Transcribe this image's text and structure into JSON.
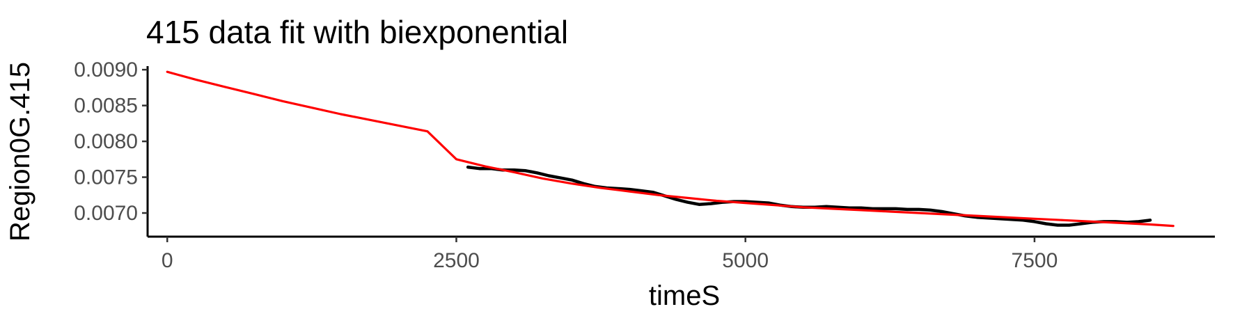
{
  "chart_data": {
    "type": "line",
    "title": "415 data fit with biexponential",
    "xlabel": "timeS",
    "ylabel": "Region0G.415",
    "xlim": [
      -170,
      9060
    ],
    "ylim": [
      0.00667,
      0.00905
    ],
    "x_ticks": [
      0,
      2500,
      5000,
      7500
    ],
    "x_tick_labels": [
      "0",
      "2500",
      "5000",
      "7500"
    ],
    "y_ticks": [
      0.007,
      0.0075,
      0.008,
      0.0085,
      0.009
    ],
    "y_tick_labels": [
      "0.0070",
      "0.0075",
      "0.0080",
      "0.0085",
      "0.0090"
    ],
    "grid": false,
    "legend": "none",
    "series": [
      {
        "role": "observed data",
        "style": "line",
        "color": "#000000",
        "x": [
          2600,
          2700,
          2800,
          2900,
          3000,
          3100,
          3200,
          3300,
          3400,
          3500,
          3600,
          3700,
          3800,
          3900,
          4000,
          4100,
          4200,
          4300,
          4400,
          4500,
          4600,
          4700,
          4800,
          4900,
          5000,
          5100,
          5200,
          5300,
          5400,
          5500,
          5600,
          5700,
          5800,
          5900,
          6000,
          6100,
          6200,
          6300,
          6400,
          6500,
          6600,
          6700,
          6800,
          6900,
          7000,
          7100,
          7200,
          7300,
          7400,
          7500,
          7600,
          7700,
          7800,
          7900,
          8000,
          8100,
          8200,
          8300,
          8400,
          8500
        ],
        "y": [
          0.00764,
          0.00762,
          0.00762,
          0.0076,
          0.0076,
          0.00759,
          0.00756,
          0.00752,
          0.00749,
          0.00746,
          0.00741,
          0.00737,
          0.00735,
          0.00734,
          0.00733,
          0.00731,
          0.00729,
          0.00724,
          0.00719,
          0.00715,
          0.00712,
          0.00713,
          0.00715,
          0.00716,
          0.00716,
          0.00715,
          0.00714,
          0.00711,
          0.00709,
          0.00708,
          0.00708,
          0.00709,
          0.00708,
          0.00707,
          0.00707,
          0.00706,
          0.00706,
          0.00706,
          0.00705,
          0.00705,
          0.00704,
          0.00702,
          0.00699,
          0.00696,
          0.00694,
          0.00693,
          0.00692,
          0.00691,
          0.0069,
          0.00688,
          0.00685,
          0.00683,
          0.00683,
          0.00685,
          0.00687,
          0.00688,
          0.00688,
          0.00687,
          0.00688,
          0.0069
        ]
      },
      {
        "role": "biexponential fit",
        "style": "line",
        "color": "#ff0000",
        "x": [
          0,
          250,
          500,
          750,
          1000,
          1250,
          1500,
          1750,
          2000,
          2250,
          2500,
          2750,
          3000,
          3250,
          3500,
          3750,
          4000,
          4250,
          4500,
          4750,
          5000,
          5250,
          5500,
          5750,
          6000,
          6250,
          6500,
          6750,
          7000,
          7250,
          7500,
          7750,
          8000,
          8250,
          8500,
          8700
        ],
        "y": [
          0.00897,
          0.00886,
          0.00876,
          0.00866,
          0.00856,
          0.00847,
          0.00838,
          0.0083,
          0.00822,
          0.00814,
          0.00775,
          0.00765,
          0.00757,
          0.00748,
          0.00741,
          0.00735,
          0.0073,
          0.00725,
          0.00721,
          0.00717,
          0.00714,
          0.00711,
          0.00708,
          0.00706,
          0.00704,
          0.00702,
          0.007,
          0.00698,
          0.00696,
          0.00694,
          0.00692,
          0.0069,
          0.00688,
          0.00686,
          0.00684,
          0.00682
        ]
      }
    ]
  }
}
